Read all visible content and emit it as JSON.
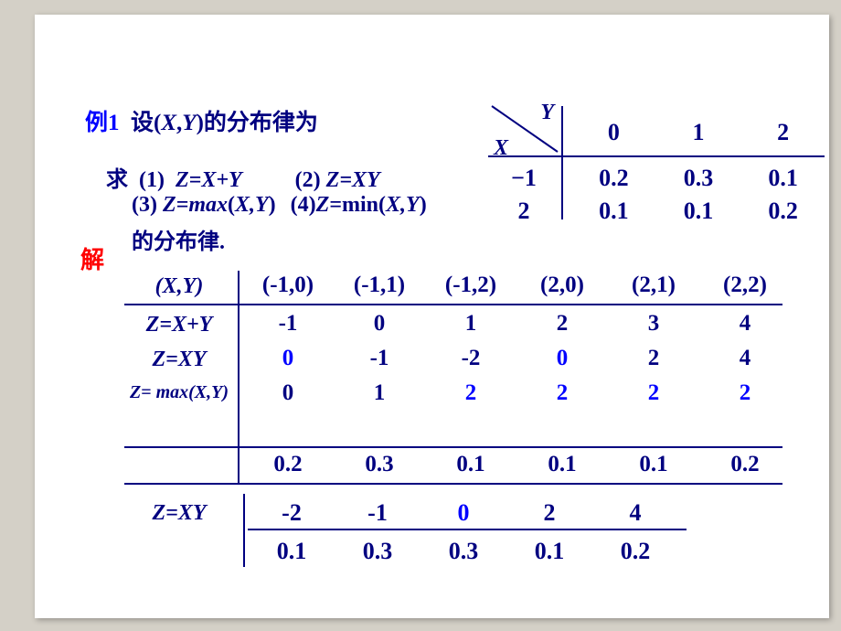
{
  "example": {
    "label": "例1",
    "stmt": "设(X,Y)的分布律为",
    "ask": "求",
    "q1": "(1) Z=X+Y",
    "q2": "(2) Z=XY",
    "q3": "(3) Z=max(X,Y)",
    "q4": "(4)Z=min(X,Y)",
    "tail": "的分布律."
  },
  "sol_label": "解",
  "small_table": {
    "y_label": "Y",
    "x_label": "X",
    "col_headers": [
      "0",
      "1",
      "2"
    ],
    "row_headers": [
      "−1",
      "2"
    ],
    "values": [
      [
        "0.2",
        "0.3",
        "0.1"
      ],
      [
        "0.1",
        "0.1",
        "0.2"
      ]
    ]
  },
  "main_table": {
    "pair_label": "(X,Y)",
    "pairs": [
      "(-1,0)",
      "(-1,1)",
      "(-1,2)",
      "(2,0)",
      "(2,1)",
      "(2,2)"
    ],
    "rows": [
      {
        "label": "Z=X+Y",
        "vals": [
          "-1",
          "0",
          "1",
          "2",
          "3",
          "4"
        ],
        "hl": []
      },
      {
        "label": "Z=XY",
        "vals": [
          "0",
          "-1",
          "-2",
          "0",
          "2",
          "4"
        ],
        "hl": [
          0,
          3
        ]
      },
      {
        "label": "Z= max(X,Y)",
        "vals": [
          "0",
          "1",
          "2",
          "2",
          "2",
          "2"
        ],
        "hl": [
          2,
          3,
          4,
          5
        ],
        "small": true
      }
    ],
    "prob_row": [
      "0.2",
      "0.3",
      "0.1",
      "0.1",
      "0.1",
      "0.2"
    ]
  },
  "bottom_table": {
    "label": "Z=XY",
    "vals": [
      "-2",
      "-1",
      "0",
      "2",
      "4"
    ],
    "hl": [
      2
    ],
    "probs": [
      "0.1",
      "0.3",
      "0.3",
      "0.1",
      "0.2"
    ]
  },
  "colors": {
    "bg": "#d4d0c7",
    "slide": "#ffffff",
    "text": "#000080",
    "example": "#0000ff",
    "solution": "#ff0000",
    "highlight": "#0000ff"
  }
}
